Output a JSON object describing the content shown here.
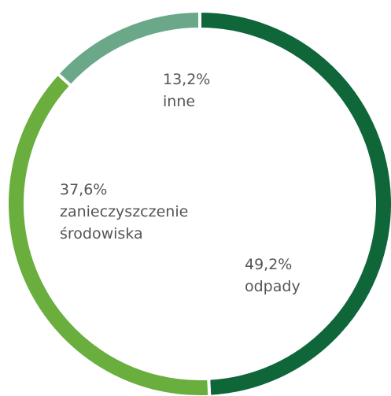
{
  "chart_data": {
    "type": "donut",
    "categories": [
      "odpady",
      "zanieczyszczenie środowiska",
      "inne"
    ],
    "values": [
      49.2,
      37.6,
      13.2
    ],
    "value_labels": [
      "49,2%",
      "37,6%",
      "13,2%"
    ],
    "colors": [
      "#0f6638",
      "#6aae3e",
      "#6aa889"
    ]
  }
}
